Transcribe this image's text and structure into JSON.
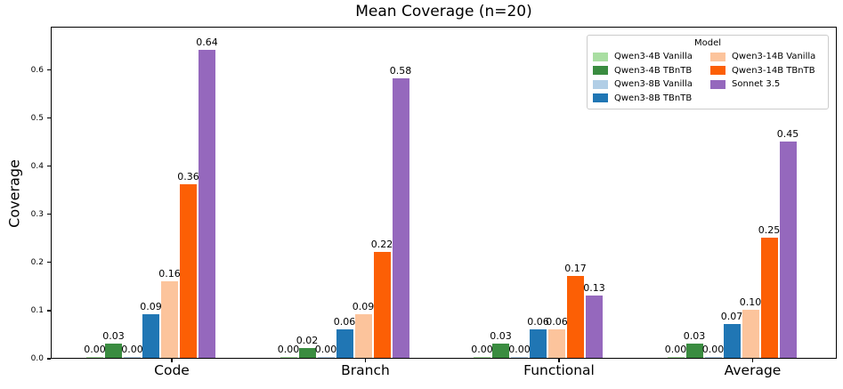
{
  "chart_data": {
    "type": "bar",
    "title": "Mean Coverage (n=20)",
    "ylabel": "Coverage",
    "xlabel": "",
    "categories": [
      "Code",
      "Branch",
      "Functional",
      "Average"
    ],
    "series": [
      {
        "name": "Qwen3-4B Vanilla",
        "color": "#a9dea2",
        "values": [
          0.0,
          0.0,
          0.0,
          0.0
        ],
        "labels": [
          "0.00",
          "0.00",
          "0.00",
          "0.00"
        ]
      },
      {
        "name": "Qwen3-4B TBnTB",
        "color": "#3a8c40",
        "values": [
          0.03,
          0.02,
          0.03,
          0.03
        ],
        "labels": [
          "0.03",
          "0.02",
          "0.03",
          "0.03"
        ]
      },
      {
        "name": "Qwen3-8B Vanilla",
        "color": "#b1cee6",
        "values": [
          0.0,
          0.0,
          0.0,
          0.0
        ],
        "labels": [
          "0.00",
          "0.00",
          "0.00",
          "0.00"
        ]
      },
      {
        "name": "Qwen3-8B TBnTB",
        "color": "#2076b4",
        "values": [
          0.09,
          0.06,
          0.06,
          0.07
        ],
        "labels": [
          "0.09",
          "0.06",
          "0.06",
          "0.07"
        ]
      },
      {
        "name": "Qwen3-14B Vanilla",
        "color": "#fcc49c",
        "values": [
          0.16,
          0.09,
          0.06,
          0.1
        ],
        "labels": [
          "0.16",
          "0.09",
          "0.06",
          "0.10"
        ]
      },
      {
        "name": "Qwen3-14B TBnTB",
        "color": "#fc5f05",
        "values": [
          0.36,
          0.22,
          0.17,
          0.25
        ],
        "labels": [
          "0.36",
          "0.22",
          "0.17",
          "0.25"
        ]
      },
      {
        "name": "Sonnet 3.5",
        "color": "#9568bd",
        "values": [
          0.64,
          0.58,
          0.13,
          0.45
        ],
        "labels": [
          "0.64",
          "0.58",
          "0.13",
          "0.45"
        ]
      }
    ],
    "yticks": [
      "0.0",
      "0.1",
      "0.2",
      "0.3",
      "0.4",
      "0.5",
      "0.6"
    ],
    "ytick_values": [
      0.0,
      0.1,
      0.2,
      0.3,
      0.4,
      0.5,
      0.6
    ],
    "ylim": [
      0,
      0.69
    ],
    "grid": false,
    "legend": {
      "title": "Model",
      "position": "upper right",
      "entries": [
        "Qwen3-4B Vanilla",
        "Qwen3-4B TBnTB",
        "Qwen3-8B Vanilla",
        "Qwen3-8B TBnTB",
        "Qwen3-14B Vanilla",
        "Qwen3-14B TBnTB",
        "Sonnet 3.5"
      ]
    },
    "bar_label_decimals": 2
  }
}
